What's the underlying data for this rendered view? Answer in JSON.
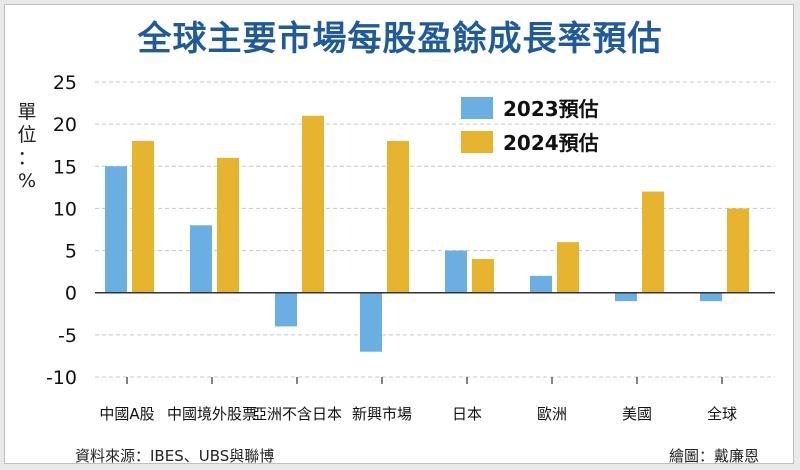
{
  "title": "全球主要市場每股盈餘成長率預估",
  "unit_label": [
    "單",
    "位",
    "：",
    "%"
  ],
  "source": "資料來源：IBES、UBS與聯博",
  "credit": "繪圖：戴廉恩",
  "colors": {
    "series_2023": "#6aaee2",
    "series_2024": "#e7b42f",
    "grid": "#c8c8c8",
    "zero_line": "#333333",
    "axis_text": "#111111"
  },
  "chart_data": {
    "type": "bar",
    "title": "全球主要市場每股盈餘成長率預估",
    "xlabel": "",
    "ylabel": "單位：%",
    "ylim": [
      -10,
      25
    ],
    "yticks": [
      25,
      20,
      15,
      10,
      5,
      0,
      -5,
      -10
    ],
    "grid": true,
    "legend_position": "top-right",
    "categories": [
      "中國A股",
      "中國境外股票",
      "亞洲不含日本",
      "新興市場",
      "日本",
      "歐洲",
      "美國",
      "全球"
    ],
    "series": [
      {
        "name": "2023預估",
        "values": [
          15,
          8,
          -4,
          -7,
          5,
          2,
          -1,
          -1
        ]
      },
      {
        "name": "2024預估",
        "values": [
          18,
          16,
          21,
          18,
          4,
          6,
          12,
          10
        ]
      }
    ]
  }
}
